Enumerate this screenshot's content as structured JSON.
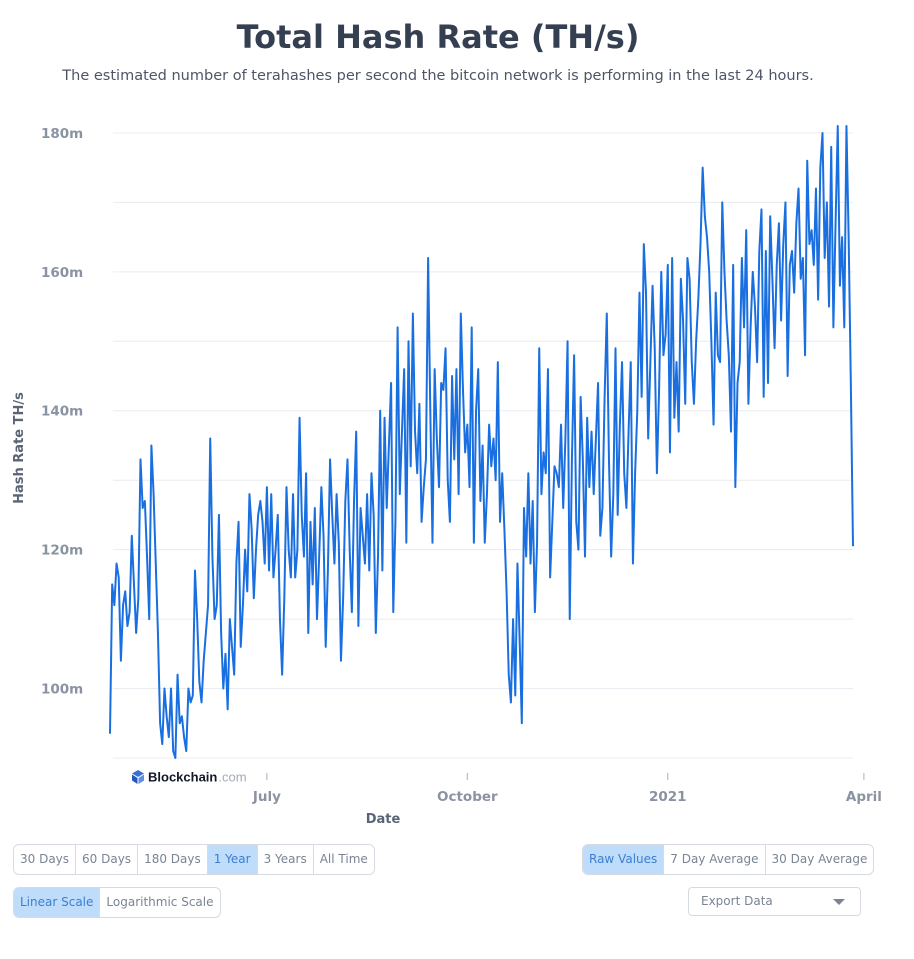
{
  "page": {
    "title": "Total Hash Rate (TH/s)",
    "subtitle": "The estimated number of terahashes per second the bitcoin network is performing in the last 24 hours."
  },
  "watermark": {
    "brand": "Blockchain",
    "suffix": ".com"
  },
  "colors": {
    "line": "#1a6fe0",
    "grid": "#e9ecf1",
    "axis_text": "#8a93a2",
    "active_button_bg": "#bfdcfb",
    "active_button_text": "#3a7fd0"
  },
  "chart_data": {
    "type": "line",
    "title": "Total Hash Rate (TH/s)",
    "xlabel": "Date",
    "ylabel": "Hash Rate TH/s",
    "ylim": [
      90,
      181
    ],
    "y_ticks": [
      100,
      120,
      140,
      160,
      180
    ],
    "y_tick_labels": [
      "100m",
      "120m",
      "140m",
      "160m",
      "180m"
    ],
    "x_tick_labels": [
      "July",
      "October",
      "2021",
      "April"
    ],
    "x_tick_days": [
      72,
      164,
      256,
      346
    ],
    "grid": true,
    "series": [
      {
        "values": [
          93.5,
          115,
          112,
          118,
          116,
          104,
          112,
          114,
          109,
          111,
          122,
          115,
          108,
          113,
          133,
          126,
          127,
          119,
          110,
          135,
          128,
          118,
          108,
          95,
          92,
          100,
          96,
          93,
          100,
          91,
          90,
          102,
          95,
          96,
          93,
          91,
          100,
          98,
          99,
          117,
          110,
          101,
          98,
          104,
          108,
          112,
          136,
          119,
          110,
          112,
          125,
          108,
          100,
          105,
          97,
          110,
          106,
          102,
          118,
          124,
          106,
          112,
          120,
          114,
          128,
          123,
          113,
          120,
          125,
          127,
          124,
          118,
          129,
          117,
          128,
          116,
          120,
          125,
          110,
          102,
          113,
          129,
          120,
          116,
          128,
          116,
          120,
          139,
          125,
          119,
          131,
          108,
          124,
          115,
          126,
          110,
          119,
          129,
          122,
          106,
          117,
          133,
          125,
          118,
          128,
          121,
          104,
          113,
          127,
          133,
          120,
          111,
          127,
          137,
          109,
          126,
          122,
          118,
          128,
          117,
          131,
          125,
          108,
          119,
          140,
          117,
          139,
          126,
          135,
          144,
          111,
          124,
          152,
          128,
          137,
          146,
          121,
          150,
          132,
          154,
          137,
          131,
          141,
          124,
          129,
          133,
          162,
          140,
          121,
          146,
          136,
          129,
          144,
          143,
          149,
          130,
          124,
          145,
          133,
          146,
          128,
          154,
          143,
          134,
          138,
          129,
          152,
          121,
          140,
          146,
          127,
          135,
          121,
          128,
          138,
          132,
          136,
          130,
          147,
          124,
          131,
          123,
          114,
          102,
          98,
          110,
          99,
          118,
          107,
          95,
          126,
          119,
          131,
          118,
          127,
          111,
          121,
          149,
          128,
          134,
          131,
          146,
          116,
          124,
          132,
          131,
          129,
          138,
          126,
          136,
          150,
          110,
          133,
          148,
          124,
          120,
          142,
          133,
          119,
          139,
          129,
          137,
          128,
          136,
          144,
          122,
          126,
          142,
          154,
          133,
          119,
          128,
          149,
          125,
          138,
          147,
          131,
          126,
          137,
          147,
          118,
          131,
          140,
          157,
          142,
          164,
          157,
          136,
          147,
          158,
          149,
          131,
          143,
          160,
          148,
          151,
          161,
          134,
          162,
          139,
          147,
          137,
          159,
          153,
          141,
          162,
          159,
          147,
          141,
          150,
          156,
          164,
          175,
          168,
          165,
          160,
          150,
          138,
          157,
          148,
          147,
          170,
          160,
          153,
          148,
          137,
          161,
          129,
          144,
          147,
          162,
          152,
          166,
          141,
          152,
          160,
          155,
          147,
          163,
          169,
          142,
          163,
          144,
          168,
          159,
          149,
          161,
          167,
          153,
          164,
          170,
          145,
          161,
          163,
          157,
          167,
          172,
          159,
          162,
          148,
          176,
          164,
          166,
          161,
          172,
          156,
          175,
          180,
          162,
          170,
          155,
          178,
          152,
          167,
          181,
          158,
          165,
          152,
          181,
          165,
          144,
          120.5
        ]
      }
    ]
  },
  "controls": {
    "time_ranges": [
      "30 Days",
      "60 Days",
      "180 Days",
      "1 Year",
      "3 Years",
      "All Time"
    ],
    "time_range_selected": "1 Year",
    "value_modes": [
      "Raw Values",
      "7 Day Average",
      "30 Day Average"
    ],
    "value_mode_selected": "Raw Values",
    "scales": [
      "Linear Scale",
      "Logarithmic Scale"
    ],
    "scale_selected": "Linear Scale",
    "export_label": "Export Data"
  }
}
